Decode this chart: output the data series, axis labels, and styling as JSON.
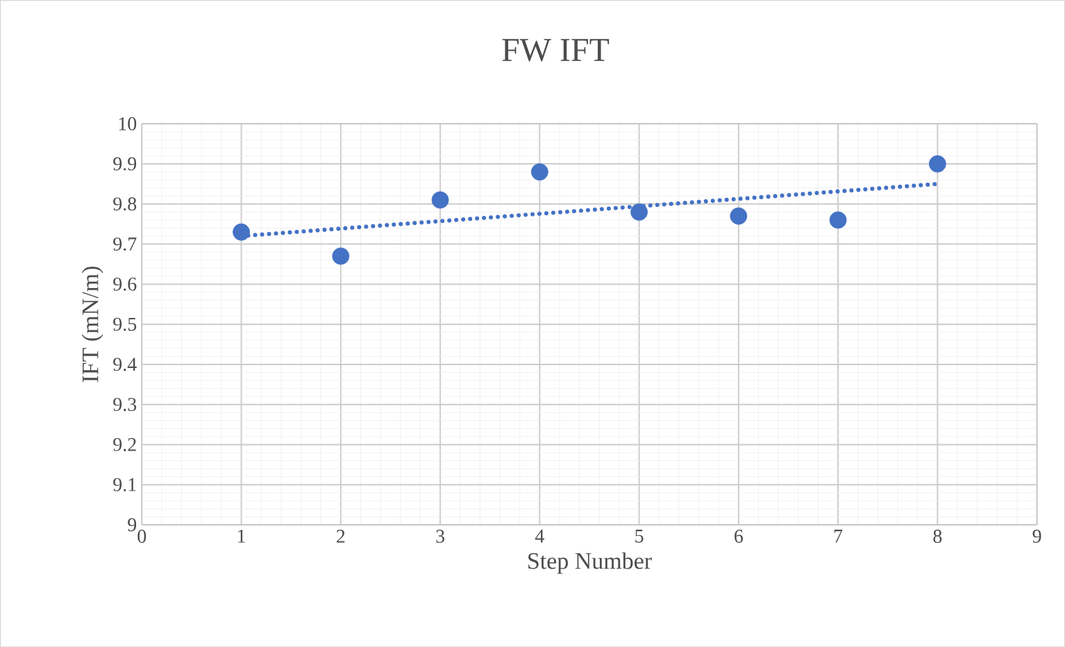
{
  "chart_data": {
    "type": "scatter",
    "title": "FW IFT",
    "xlabel": "Step Number",
    "ylabel": "IFT (mN/m)",
    "xlim": [
      0,
      9
    ],
    "xticks": [
      0,
      1,
      2,
      3,
      4,
      5,
      6,
      7,
      8,
      9
    ],
    "ylim": [
      9,
      10
    ],
    "yticks": [
      9,
      9.1,
      9.2,
      9.3,
      9.4,
      9.5,
      9.6,
      9.7,
      9.8,
      9.9,
      10
    ],
    "grid": true,
    "legend": false,
    "series": [
      {
        "type": "scatter",
        "marker": "circle",
        "color": "#4472c4",
        "x": [
          1,
          2,
          3,
          4,
          5,
          6,
          7,
          8
        ],
        "values": [
          9.73,
          9.67,
          9.81,
          9.88,
          9.78,
          9.77,
          9.76,
          9.9
        ]
      },
      {
        "type": "line",
        "color": "#4472c4",
        "line_style": "dotted",
        "marker": "none",
        "x": [
          1,
          8
        ],
        "values": [
          9.72,
          9.85
        ]
      }
    ]
  }
}
